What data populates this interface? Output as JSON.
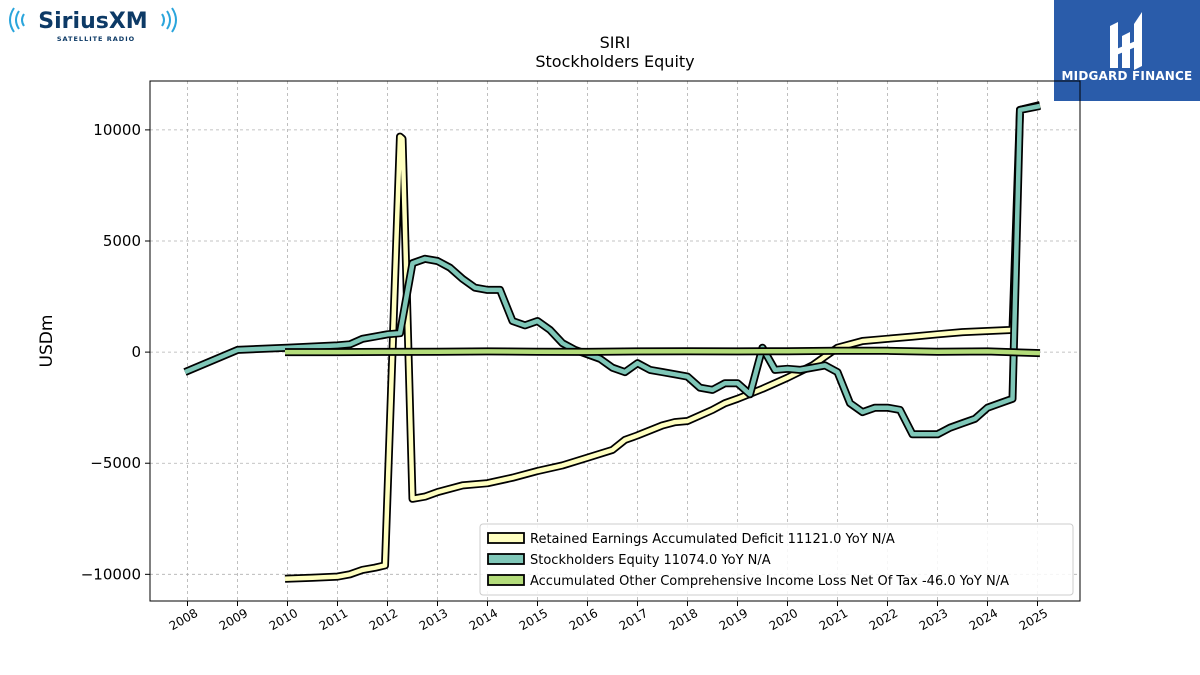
{
  "logos": {
    "left_brand": "SiriusXM",
    "left_tagline": "SATELLITE RADIO",
    "right_brand": "MIDGARD FINANCE"
  },
  "chart_data": {
    "type": "line",
    "title": "SIRI",
    "subtitle": "Stockholders  Equity",
    "ylabel": "USDm",
    "xlabel": "",
    "xlim": [
      2007.25,
      2025.85
    ],
    "ylim": [
      -11200,
      12200
    ],
    "yticks": [
      10000,
      5000,
      0,
      -5000,
      -10000
    ],
    "ytick_labels": [
      "10000",
      "5000",
      "0",
      "−5000",
      "−10000"
    ],
    "xticks": [
      2008,
      2009,
      2010,
      2011,
      2012,
      2013,
      2014,
      2015,
      2016,
      2017,
      2018,
      2019,
      2020,
      2021,
      2022,
      2023,
      2024,
      2025
    ],
    "xtick_labels": [
      "2008",
      "2009",
      "2010",
      "2011",
      "2012",
      "2013",
      "2014",
      "2015",
      "2016",
      "2017",
      "2018",
      "2019",
      "2020",
      "2021",
      "2022",
      "2023",
      "2024",
      "2025"
    ],
    "grid": true,
    "legend_position": "lower-right",
    "series": [
      {
        "name": "Retained Earnings Accumulated Deficit",
        "legend": "Retained Earnings Accumulated Deficit  11121.0 YoY N/A",
        "color": "#ffffc0",
        "x": [
          2009.95,
          2010.5,
          2011.0,
          2011.25,
          2011.5,
          2011.75,
          2011.95,
          2012.25,
          2012.3,
          2012.5,
          2012.75,
          2013.0,
          2013.5,
          2014.0,
          2014.5,
          2015.0,
          2015.5,
          2016.0,
          2016.5,
          2016.75,
          2017.0,
          2017.5,
          2017.75,
          2018.0,
          2018.5,
          2018.75,
          2019.0,
          2019.5,
          2020.0,
          2020.5,
          2021.0,
          2021.5,
          2022.0,
          2022.5,
          2023.0,
          2023.5,
          2024.0,
          2024.5,
          2024.65,
          2025.05
        ],
        "y": [
          -10200,
          -10150,
          -10100,
          -10000,
          -9800,
          -9700,
          -9600,
          9700,
          9600,
          -6600,
          -6500,
          -6300,
          -6000,
          -5900,
          -5650,
          -5350,
          -5100,
          -4750,
          -4400,
          -3950,
          -3750,
          -3300,
          -3150,
          -3100,
          -2600,
          -2300,
          -2100,
          -1650,
          -1150,
          -600,
          200,
          500,
          600,
          700,
          800,
          900,
          950,
          1000,
          10900,
          11121
        ]
      },
      {
        "name": "Stockholders Equity",
        "legend": "Stockholders Equity  11074.0 YoY N/A",
        "color": "#7fc7b8",
        "x": [
          2007.95,
          2009.0,
          2010.0,
          2011.0,
          2011.25,
          2011.5,
          2011.75,
          2012.0,
          2012.25,
          2012.5,
          2012.75,
          2013.0,
          2013.25,
          2013.5,
          2013.75,
          2014.0,
          2014.25,
          2014.5,
          2014.75,
          2015.0,
          2015.25,
          2015.5,
          2015.75,
          2016.0,
          2016.25,
          2016.5,
          2016.75,
          2017.0,
          2017.25,
          2017.5,
          2017.75,
          2018.0,
          2018.25,
          2018.5,
          2018.75,
          2019.0,
          2019.25,
          2019.5,
          2019.75,
          2020.0,
          2020.25,
          2020.5,
          2020.75,
          2021.0,
          2021.25,
          2021.5,
          2021.75,
          2022.0,
          2022.25,
          2022.5,
          2022.75,
          2023.0,
          2023.25,
          2023.5,
          2023.75,
          2024.0,
          2024.25,
          2024.5,
          2024.65,
          2025.05
        ],
        "y": [
          -900,
          100,
          200,
          300,
          350,
          600,
          700,
          800,
          850,
          4000,
          4200,
          4100,
          3800,
          3300,
          2900,
          2800,
          2800,
          1400,
          1200,
          1400,
          1000,
          400,
          100,
          -100,
          -300,
          -700,
          -900,
          -500,
          -800,
          -900,
          -1000,
          -1100,
          -1600,
          -1700,
          -1400,
          -1400,
          -1900,
          200,
          -800,
          -750,
          -800,
          -700,
          -600,
          -900,
          -2300,
          -2700,
          -2500,
          -2500,
          -2600,
          -3700,
          -3700,
          -3700,
          -3400,
          -3200,
          -3000,
          -2500,
          -2300,
          -2100,
          10900,
          11074
        ]
      },
      {
        "name": "Accumulated Other Comprehensive Income Loss Net Of Tax",
        "legend": "Accumulated Other Comprehensive Income Loss Net Of Tax  -46.0 YoY N/A",
        "color": "#b3dc7a",
        "x": [
          2009.95,
          2011.0,
          2012.0,
          2013.0,
          2014.0,
          2015.0,
          2016.0,
          2017.0,
          2018.0,
          2019.0,
          2020.0,
          2021.0,
          2022.0,
          2023.0,
          2024.0,
          2025.05
        ],
        "y": [
          0,
          0,
          10,
          20,
          30,
          20,
          10,
          30,
          40,
          30,
          40,
          60,
          60,
          20,
          30,
          -46
        ]
      }
    ]
  }
}
